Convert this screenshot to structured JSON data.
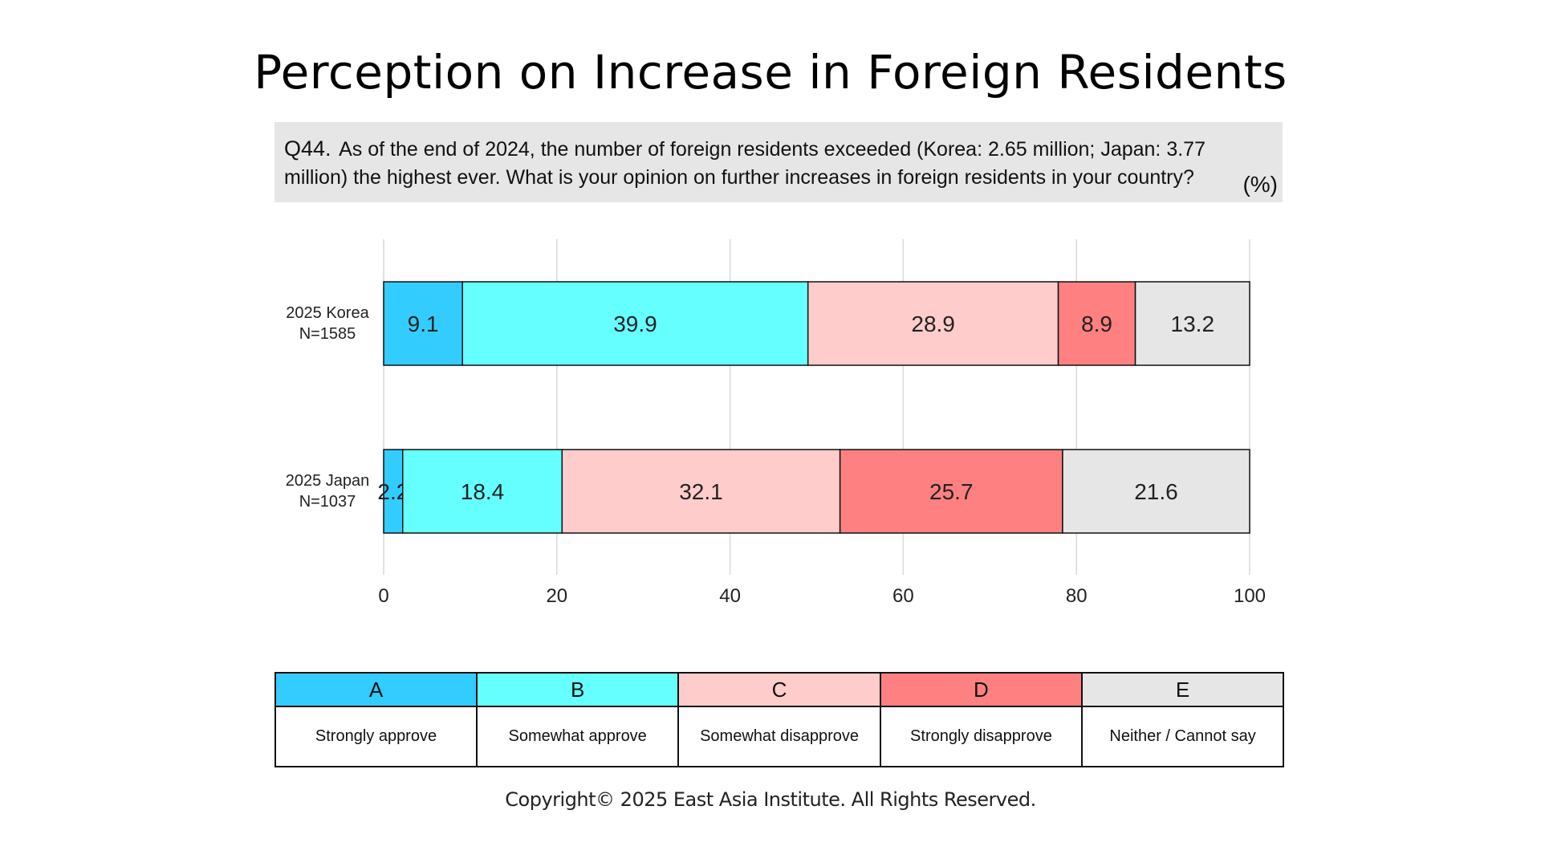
{
  "title": "Perception on Increase in Foreign Residents",
  "question": {
    "prefix": "Q44.",
    "text": "As of the end of 2024, the number of foreign residents exceeded (Korea: 2.65 million; Japan: 3.77 million) the highest ever. What is your opinion on further increases in foreign residents in your country?",
    "unit": "(%)"
  },
  "chart_data": {
    "type": "bar",
    "orientation": "horizontal",
    "stacked": true,
    "xlim": [
      0,
      100
    ],
    "xticks": [
      "0",
      "20",
      "40",
      "60",
      "80",
      "100"
    ],
    "grid": true,
    "rows": [
      {
        "label_line1": "2025 Korea",
        "label_line2": "N=1585"
      },
      {
        "label_line1": "2025 Japan",
        "label_line2": "N=1037"
      }
    ],
    "series": [
      {
        "code": "A",
        "name": "Strongly approve",
        "color": "#33ccff",
        "values": [
          9.1,
          2.2
        ]
      },
      {
        "code": "B",
        "name": "Somewhat approve",
        "color": "#66ffff",
        "values": [
          39.9,
          18.4
        ]
      },
      {
        "code": "C",
        "name": "Somewhat disapprove",
        "color": "#ffcccc",
        "values": [
          28.9,
          32.1
        ]
      },
      {
        "code": "D",
        "name": "Strongly disapprove",
        "color": "#ff8080",
        "values": [
          8.9,
          25.7
        ]
      },
      {
        "code": "E",
        "name": "Neither / Cannot say",
        "color": "#e6e6e6",
        "values": [
          13.2,
          21.6
        ]
      }
    ]
  },
  "copyright": "Copyright© 2025 East Asia Institute. All Rights Reserved."
}
